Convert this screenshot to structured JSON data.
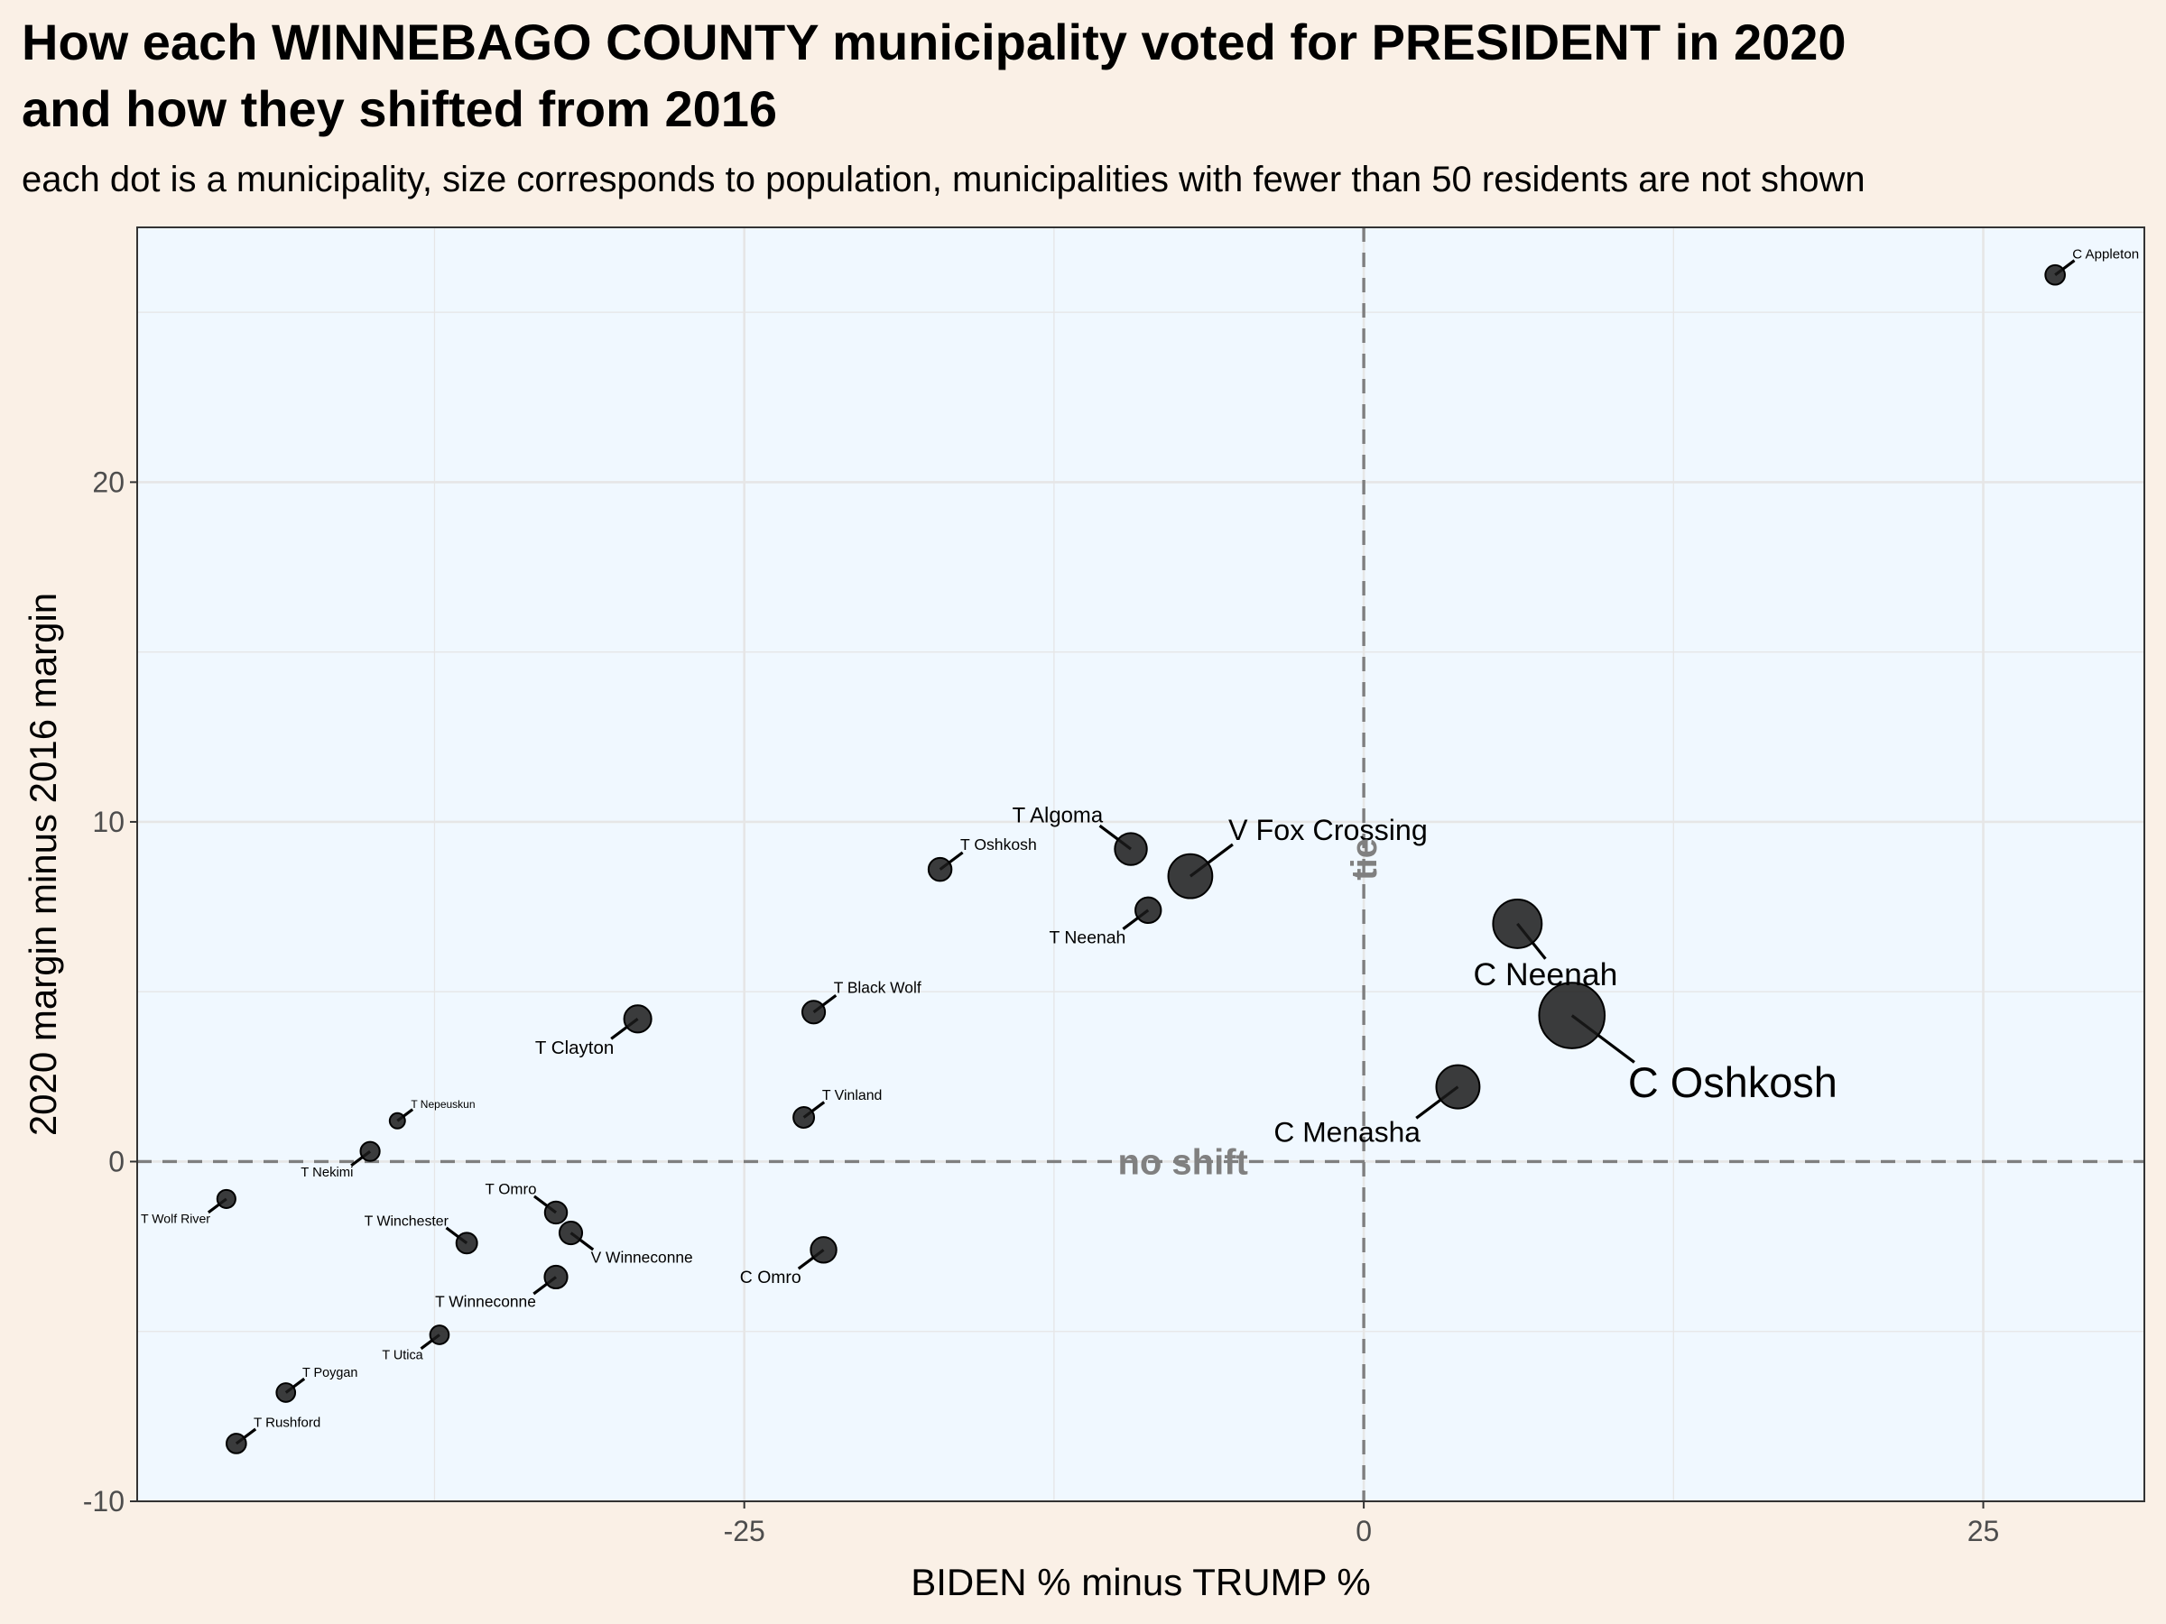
{
  "title_line1": "How each WINNEBAGO COUNTY municipality voted for PRESIDENT in 2020",
  "title_line2": "and how they shifted from 2016",
  "subtitle": "each dot is a municipality, size corresponds to population, municipalities with fewer than 50 residents are not shown",
  "colors": {
    "page_background": "#faf0e6",
    "panel_background": "#f0f8ff",
    "points": "#1a1a1a",
    "reference_lines": "#7f7f7f",
    "grid": "#e6e6e6"
  },
  "annotations": {
    "no_shift": "no shift",
    "tie": "tie"
  },
  "chart_data": {
    "type": "scatter",
    "title": "How each WINNEBAGO COUNTY municipality voted for PRESIDENT in 2020 and how they shifted from 2016",
    "subtitle": "each dot is a municipality, size corresponds to population, municipalities with fewer than 50 residents are not shown",
    "xlabel": "BIDEN % minus TRUMP %",
    "ylabel": "2020 margin minus 2016 margin",
    "xlim": [
      -49.5,
      31.5
    ],
    "ylim": [
      -10,
      27.5
    ],
    "x_ticks": [
      -25,
      0,
      25
    ],
    "y_ticks": [
      -10,
      0,
      10,
      20
    ],
    "grid": true,
    "legend": "none",
    "reference_lines": [
      {
        "axis": "y",
        "value": 0,
        "style": "dashed",
        "label": "no shift"
      },
      {
        "axis": "x",
        "value": 0,
        "style": "dashed",
        "label": "tie"
      }
    ],
    "points": [
      {
        "label": "C Appleton",
        "x": 27.9,
        "y": 26.1,
        "population": 1500,
        "label_pos": "right-above"
      },
      {
        "label": "C Oshkosh",
        "x": 8.4,
        "y": 4.3,
        "population": 66000,
        "label_pos": "right-below"
      },
      {
        "label": "C Neenah",
        "x": 6.2,
        "y": 7.0,
        "population": 26000,
        "label_pos": "below"
      },
      {
        "label": "C Menasha",
        "x": 3.8,
        "y": 2.2,
        "population": 18000,
        "label_pos": "left-below"
      },
      {
        "label": "V Fox Crossing",
        "x": -7.0,
        "y": 8.4,
        "population": 19000,
        "label_pos": "right-above"
      },
      {
        "label": "T Algoma",
        "x": -9.4,
        "y": 9.2,
        "population": 7000,
        "label_pos": "left-above"
      },
      {
        "label": "T Neenah",
        "x": -8.7,
        "y": 7.4,
        "population": 3500,
        "label_pos": "left-below"
      },
      {
        "label": "T Oshkosh",
        "x": -17.1,
        "y": 8.6,
        "population": 2500,
        "label_pos": "right-above"
      },
      {
        "label": "T Black Wolf",
        "x": -22.2,
        "y": 4.4,
        "population": 2400,
        "label_pos": "right-above"
      },
      {
        "label": "T Clayton",
        "x": -29.3,
        "y": 4.2,
        "population": 4200,
        "label_pos": "left-below"
      },
      {
        "label": "T Vinland",
        "x": -22.6,
        "y": 1.3,
        "population": 1800,
        "label_pos": "right-above"
      },
      {
        "label": "T Nepeuskun",
        "x": -39.0,
        "y": 1.2,
        "population": 700,
        "label_pos": "right-above"
      },
      {
        "label": "T Nekimi",
        "x": -40.1,
        "y": 0.3,
        "population": 1400,
        "label_pos": "left-below"
      },
      {
        "label": "T Wolf River",
        "x": -45.9,
        "y": -1.1,
        "population": 1200,
        "label_pos": "left-below"
      },
      {
        "label": "T Omro",
        "x": -32.6,
        "y": -1.5,
        "population": 2200,
        "label_pos": "left-above"
      },
      {
        "label": "V Winneconne",
        "x": -32.0,
        "y": -2.1,
        "population": 2400,
        "label_pos": "right-below"
      },
      {
        "label": "T Winchester",
        "x": -36.2,
        "y": -2.4,
        "population": 1800,
        "label_pos": "left-above"
      },
      {
        "label": "C Omro",
        "x": -21.8,
        "y": -2.6,
        "population": 3500,
        "label_pos": "left-below"
      },
      {
        "label": "T Winneconne",
        "x": -32.6,
        "y": -3.4,
        "population": 2400,
        "label_pos": "left-below"
      },
      {
        "label": "T Utica",
        "x": -37.3,
        "y": -5.1,
        "population": 1300,
        "label_pos": "left-below"
      },
      {
        "label": "T Poygan",
        "x": -43.5,
        "y": -6.8,
        "population": 1300,
        "label_pos": "right-above"
      },
      {
        "label": "T Rushford",
        "x": -45.5,
        "y": -8.3,
        "population": 1500,
        "label_pos": "right-above"
      }
    ]
  }
}
